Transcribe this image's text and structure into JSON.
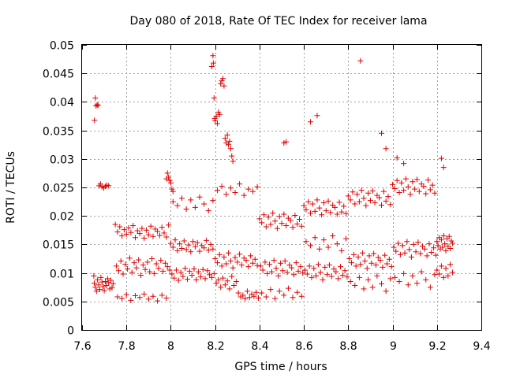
{
  "chart_data": {
    "type": "scatter",
    "title": "Day 080 of 2018, Rate Of TEC Index for receiver lama",
    "xlabel": "GPS time / hours",
    "ylabel": "ROTI / TECUs",
    "xlim": [
      7.6,
      9.4
    ],
    "ylim": [
      0,
      0.05
    ],
    "xticks": [
      7.6,
      7.8,
      8.0,
      8.2,
      8.4,
      8.6,
      8.8,
      9.0,
      9.2,
      9.4
    ],
    "xtick_labels": [
      "7.6",
      "7.8",
      "8",
      "8.2",
      "8.4",
      "8.6",
      "8.8",
      "9",
      "9.2",
      "9.4"
    ],
    "yticks": [
      0,
      0.005,
      0.01,
      0.015,
      0.02,
      0.025,
      0.03,
      0.035,
      0.04,
      0.045,
      0.05
    ],
    "ytick_labels": [
      "0",
      "0.005",
      "0.01",
      "0.015",
      "0.02",
      "0.025",
      "0.03",
      "0.035",
      "0.04",
      "0.045",
      "0.05"
    ],
    "grid": true,
    "marker": "+",
    "series": [
      {
        "name": "ROTI",
        "color": "#e00000",
        "x": [
          7.653,
          7.655,
          7.66,
          7.665,
          7.67,
          7.675,
          7.68,
          7.685,
          7.69,
          7.695,
          7.7,
          7.705,
          7.71,
          7.715,
          7.72,
          7.725,
          7.73,
          7.735,
          7.74,
          7.656,
          7.66,
          7.663,
          7.668,
          7.672,
          7.677,
          7.683,
          7.69,
          7.698,
          7.705,
          7.712,
          7.72,
          7.75,
          7.76,
          7.77,
          7.78,
          7.79,
          7.8,
          7.81,
          7.82,
          7.83,
          7.84,
          7.85,
          7.86,
          7.87,
          7.88,
          7.89,
          7.9,
          7.91,
          7.92,
          7.93,
          7.94,
          7.95,
          7.96,
          7.97,
          7.98,
          7.99,
          7.755,
          7.765,
          7.775,
          7.785,
          7.795,
          7.805,
          7.815,
          7.825,
          7.835,
          7.845,
          7.855,
          7.865,
          7.875,
          7.885,
          7.895,
          7.905,
          7.915,
          7.925,
          7.935,
          7.945,
          7.955,
          7.965,
          7.975,
          7.985,
          7.995,
          7.76,
          7.78,
          7.8,
          7.82,
          7.84,
          7.86,
          7.88,
          7.9,
          7.92,
          7.94,
          7.96,
          7.98,
          7.98,
          7.985,
          7.99,
          7.995,
          8.0,
          8.005,
          8.01,
          8.0,
          8.01,
          8.02,
          8.03,
          8.04,
          8.05,
          8.06,
          8.07,
          8.08,
          8.09,
          8.1,
          8.11,
          8.12,
          8.13,
          8.14,
          8.15,
          8.16,
          8.17,
          8.18,
          8.19,
          8.005,
          8.015,
          8.025,
          8.035,
          8.045,
          8.055,
          8.065,
          8.075,
          8.085,
          8.095,
          8.105,
          8.115,
          8.125,
          8.135,
          8.145,
          8.155,
          8.165,
          8.175,
          8.185,
          8.195,
          8.01,
          8.03,
          8.05,
          8.07,
          8.09,
          8.11,
          8.13,
          8.15,
          8.17,
          8.19,
          8.185,
          8.19,
          8.192,
          8.195,
          8.198,
          8.2,
          8.205,
          8.21,
          8.215,
          8.22,
          8.225,
          8.23,
          8.235,
          8.24,
          8.245,
          8.25,
          8.255,
          8.26,
          8.265,
          8.27,
          8.275,
          8.28,
          8.2,
          8.21,
          8.22,
          8.23,
          8.24,
          8.25,
          8.26,
          8.27,
          8.28,
          8.29,
          8.3,
          8.31,
          8.32,
          8.33,
          8.34,
          8.35,
          8.36,
          8.37,
          8.38,
          8.39,
          8.205,
          8.215,
          8.225,
          8.235,
          8.245,
          8.255,
          8.265,
          8.275,
          8.285,
          8.295,
          8.305,
          8.315,
          8.325,
          8.335,
          8.345,
          8.355,
          8.365,
          8.375,
          8.385,
          8.395,
          8.21,
          8.23,
          8.25,
          8.27,
          8.29,
          8.31,
          8.33,
          8.35,
          8.37,
          8.39,
          8.4,
          8.41,
          8.42,
          8.43,
          8.44,
          8.45,
          8.46,
          8.47,
          8.48,
          8.49,
          8.5,
          8.51,
          8.52,
          8.53,
          8.54,
          8.55,
          8.56,
          8.57,
          8.58,
          8.59,
          8.405,
          8.415,
          8.425,
          8.435,
          8.445,
          8.455,
          8.465,
          8.475,
          8.485,
          8.495,
          8.505,
          8.515,
          8.525,
          8.535,
          8.545,
          8.555,
          8.565,
          8.575,
          8.585,
          8.595,
          8.41,
          8.43,
          8.45,
          8.47,
          8.49,
          8.51,
          8.53,
          8.55,
          8.57,
          8.59,
          8.6,
          8.61,
          8.62,
          8.63,
          8.64,
          8.65,
          8.66,
          8.67,
          8.68,
          8.69,
          8.7,
          8.71,
          8.72,
          8.73,
          8.74,
          8.75,
          8.76,
          8.77,
          8.78,
          8.79,
          8.605,
          8.615,
          8.625,
          8.635,
          8.645,
          8.655,
          8.665,
          8.675,
          8.685,
          8.695,
          8.705,
          8.715,
          8.725,
          8.735,
          8.745,
          8.755,
          8.765,
          8.775,
          8.785,
          8.795,
          8.61,
          8.63,
          8.65,
          8.67,
          8.69,
          8.71,
          8.73,
          8.75,
          8.77,
          8.79,
          8.8,
          8.81,
          8.82,
          8.83,
          8.84,
          8.85,
          8.86,
          8.87,
          8.88,
          8.89,
          8.9,
          8.91,
          8.92,
          8.93,
          8.94,
          8.95,
          8.96,
          8.97,
          8.98,
          8.99,
          8.805,
          8.815,
          8.825,
          8.835,
          8.845,
          8.855,
          8.865,
          8.875,
          8.885,
          8.895,
          8.905,
          8.915,
          8.925,
          8.935,
          8.945,
          8.955,
          8.965,
          8.975,
          8.985,
          8.995,
          8.81,
          8.83,
          8.85,
          8.87,
          8.89,
          8.91,
          8.93,
          8.95,
          8.97,
          8.99,
          9.0,
          9.01,
          9.02,
          9.03,
          9.04,
          9.05,
          9.06,
          9.07,
          9.08,
          9.09,
          9.1,
          9.11,
          9.12,
          9.13,
          9.14,
          9.15,
          9.16,
          9.17,
          9.18,
          9.19,
          9.005,
          9.015,
          9.025,
          9.035,
          9.045,
          9.055,
          9.065,
          9.075,
          9.085,
          9.095,
          9.105,
          9.115,
          9.125,
          9.135,
          9.145,
          9.155,
          9.165,
          9.175,
          9.185,
          9.195,
          9.01,
          9.03,
          9.05,
          9.07,
          9.09,
          9.11,
          9.13,
          9.15,
          9.17,
          9.19,
          9.2,
          9.205,
          9.21,
          9.215,
          9.22,
          9.225,
          9.23,
          9.235,
          9.24,
          9.245,
          9.25,
          9.255,
          9.26,
          9.265,
          9.27,
          9.2,
          9.21,
          9.22,
          9.23,
          9.24,
          9.25,
          9.26,
          9.27,
          8.855,
          8.95,
          8.97,
          9.02,
          9.05,
          9.22,
          9.23,
          8.66,
          8.63,
          8.51,
          8.52
        ],
        "y": [
          0.0095,
          0.0082,
          0.0075,
          0.0068,
          0.0088,
          0.0079,
          0.0071,
          0.0092,
          0.0084,
          0.0076,
          0.0069,
          0.0085,
          0.0078,
          0.009,
          0.0083,
          0.0072,
          0.0087,
          0.0074,
          0.0081,
          0.0368,
          0.0407,
          0.0393,
          0.0395,
          0.0394,
          0.0253,
          0.0256,
          0.0251,
          0.0249,
          0.0252,
          0.0254,
          0.0253,
          0.0185,
          0.0172,
          0.0181,
          0.0165,
          0.0176,
          0.0168,
          0.0179,
          0.0171,
          0.0183,
          0.0162,
          0.0174,
          0.0169,
          0.0178,
          0.0161,
          0.0175,
          0.0167,
          0.0182,
          0.0164,
          0.0177,
          0.0173,
          0.0166,
          0.018,
          0.017,
          0.0163,
          0.0184,
          0.0112,
          0.0104,
          0.0121,
          0.0098,
          0.0115,
          0.0107,
          0.0126,
          0.0101,
          0.0118,
          0.0109,
          0.0123,
          0.0096,
          0.0114,
          0.0106,
          0.0119,
          0.0102,
          0.0125,
          0.0099,
          0.0116,
          0.0108,
          0.0122,
          0.0103,
          0.0117,
          0.0111,
          0.0105,
          0.0058,
          0.0055,
          0.0062,
          0.0052,
          0.006,
          0.0057,
          0.0063,
          0.0054,
          0.0059,
          0.0051,
          0.0061,
          0.0056,
          0.0265,
          0.0275,
          0.0268,
          0.0262,
          0.0258,
          0.0247,
          0.0243,
          0.0152,
          0.0145,
          0.0158,
          0.0139,
          0.0151,
          0.0143,
          0.0156,
          0.0141,
          0.0149,
          0.0137,
          0.0155,
          0.0146,
          0.0153,
          0.0138,
          0.0148,
          0.0144,
          0.0157,
          0.014,
          0.015,
          0.0142,
          0.0098,
          0.0091,
          0.0105,
          0.0087,
          0.0101,
          0.0094,
          0.0108,
          0.0089,
          0.0103,
          0.0096,
          0.0107,
          0.0088,
          0.0102,
          0.0093,
          0.0106,
          0.009,
          0.0104,
          0.0097,
          0.0092,
          0.0099,
          0.0225,
          0.0218,
          0.0231,
          0.0212,
          0.0228,
          0.0215,
          0.0233,
          0.0221,
          0.0209,
          0.0227,
          0.0462,
          0.0481,
          0.0468,
          0.0407,
          0.0371,
          0.0367,
          0.0375,
          0.0362,
          0.0382,
          0.0378,
          0.0432,
          0.0437,
          0.0441,
          0.0428,
          0.0336,
          0.0328,
          0.0342,
          0.0325,
          0.0331,
          0.0318,
          0.0305,
          0.0296,
          0.0125,
          0.0118,
          0.0132,
          0.0112,
          0.0128,
          0.0116,
          0.0135,
          0.0121,
          0.0109,
          0.0127,
          0.0119,
          0.0133,
          0.0114,
          0.0126,
          0.0122,
          0.0111,
          0.013,
          0.0117,
          0.0124,
          0.0113,
          0.0082,
          0.0088,
          0.0075,
          0.0091,
          0.0079,
          0.0086,
          0.0072,
          0.0094,
          0.0078,
          0.0085,
          0.0065,
          0.0058,
          0.0061,
          0.0055,
          0.0068,
          0.0057,
          0.0063,
          0.0059,
          0.0066,
          0.0056,
          0.0245,
          0.0252,
          0.0238,
          0.0249,
          0.0241,
          0.0256,
          0.0236,
          0.0247,
          0.0243,
          0.0251,
          0.0195,
          0.0188,
          0.0202,
          0.0181,
          0.0198,
          0.0185,
          0.0205,
          0.0191,
          0.0178,
          0.0199,
          0.0187,
          0.0203,
          0.0183,
          0.0196,
          0.0192,
          0.018,
          0.0201,
          0.0186,
          0.0194,
          0.0182,
          0.0112,
          0.0105,
          0.0119,
          0.0099,
          0.0115,
          0.0102,
          0.0122,
          0.0108,
          0.0095,
          0.0117,
          0.0104,
          0.0121,
          0.0101,
          0.0114,
          0.0109,
          0.0097,
          0.0118,
          0.0103,
          0.0111,
          0.01,
          0.0065,
          0.0058,
          0.0071,
          0.0055,
          0.0068,
          0.0061,
          0.0073,
          0.0057,
          0.0066,
          0.0059,
          0.0218,
          0.0211,
          0.0225,
          0.0205,
          0.0221,
          0.0208,
          0.0228,
          0.0214,
          0.0202,
          0.0223,
          0.0209,
          0.0226,
          0.0206,
          0.0219,
          0.0215,
          0.0203,
          0.0224,
          0.0207,
          0.0217,
          0.0204,
          0.0105,
          0.0098,
          0.0112,
          0.0092,
          0.0108,
          0.0095,
          0.0115,
          0.0101,
          0.0088,
          0.011,
          0.0097,
          0.0114,
          0.0094,
          0.0107,
          0.0102,
          0.009,
          0.0111,
          0.0096,
          0.0104,
          0.0093,
          0.0155,
          0.0148,
          0.0162,
          0.0142,
          0.0158,
          0.0145,
          0.0165,
          0.0151,
          0.0139,
          0.016,
          0.0235,
          0.0228,
          0.0242,
          0.0221,
          0.0238,
          0.0225,
          0.0245,
          0.0231,
          0.0218,
          0.024,
          0.0227,
          0.0244,
          0.0223,
          0.0236,
          0.0232,
          0.0219,
          0.0243,
          0.0226,
          0.0234,
          0.022,
          0.0125,
          0.0118,
          0.0132,
          0.0112,
          0.0128,
          0.0115,
          0.0135,
          0.0121,
          0.0108,
          0.013,
          0.0117,
          0.0134,
          0.0114,
          0.0127,
          0.0122,
          0.011,
          0.0131,
          0.0116,
          0.0124,
          0.0111,
          0.0085,
          0.0078,
          0.0092,
          0.0072,
          0.0088,
          0.0075,
          0.0095,
          0.0081,
          0.0068,
          0.009,
          0.0255,
          0.0248,
          0.0262,
          0.0241,
          0.0258,
          0.0245,
          0.0265,
          0.0251,
          0.0238,
          0.026,
          0.0247,
          0.0264,
          0.0243,
          0.0256,
          0.0252,
          0.0239,
          0.0263,
          0.0246,
          0.0254,
          0.024,
          0.0145,
          0.0138,
          0.0152,
          0.0132,
          0.0148,
          0.0135,
          0.0155,
          0.0141,
          0.0128,
          0.015,
          0.0137,
          0.0154,
          0.0134,
          0.0147,
          0.0142,
          0.013,
          0.0151,
          0.0136,
          0.0144,
          0.0131,
          0.0092,
          0.0085,
          0.0099,
          0.0079,
          0.0095,
          0.0082,
          0.0102,
          0.0088,
          0.0075,
          0.0097,
          0.0155,
          0.0148,
          0.0162,
          0.0142,
          0.0158,
          0.0145,
          0.0165,
          0.0151,
          0.0139,
          0.016,
          0.0147,
          0.0164,
          0.0143,
          0.0156,
          0.0152,
          0.0105,
          0.0098,
          0.0112,
          0.0092,
          0.0108,
          0.0095,
          0.0115,
          0.0101,
          0.0472,
          0.0345,
          0.0318,
          0.0302,
          0.0292,
          0.0301,
          0.0285,
          0.0376,
          0.0365,
          0.0328,
          0.033
        ]
      }
    ]
  }
}
